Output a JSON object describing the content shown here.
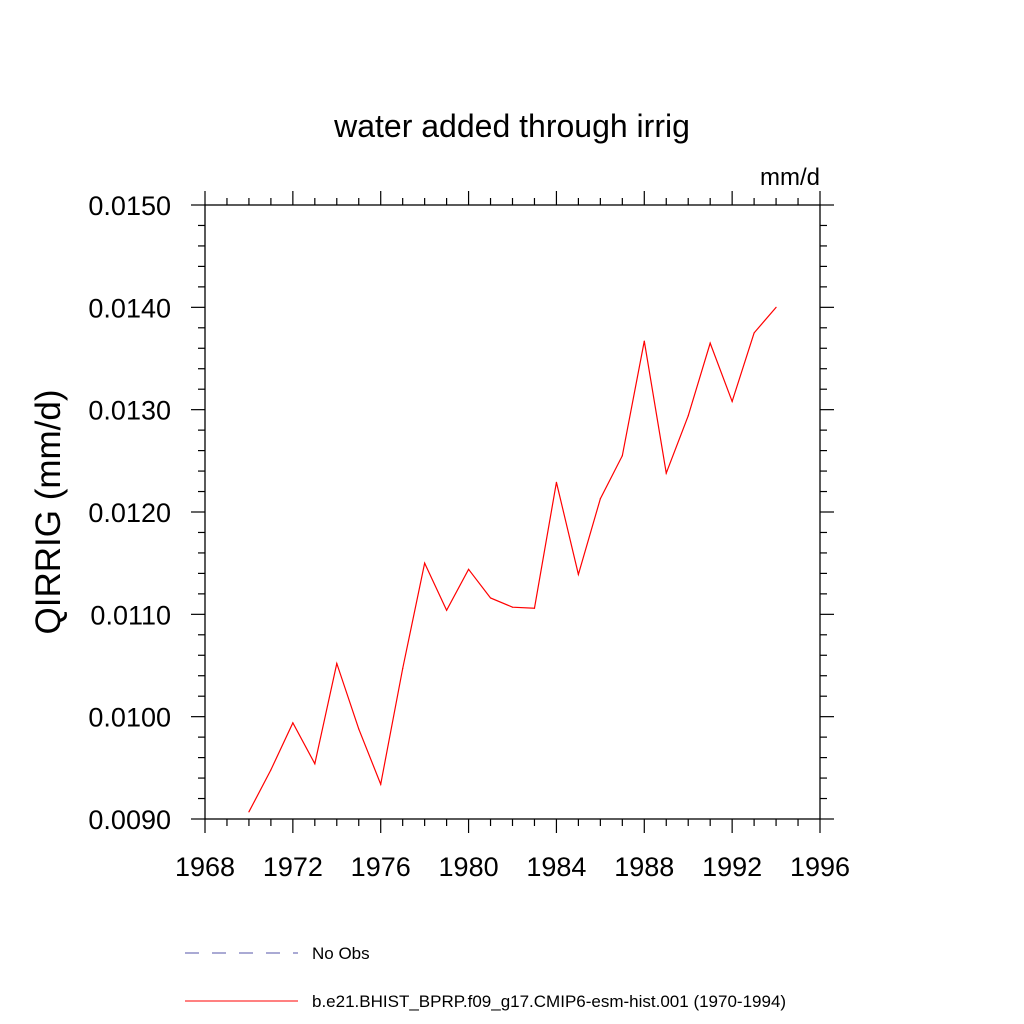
{
  "chart_data": {
    "type": "line",
    "title": "water added through irrig",
    "units_label": "mm/d",
    "ylabel": "QIRRIG  (mm/d)",
    "xlabel": "",
    "xlim": [
      1968,
      1996
    ],
    "ylim": [
      0.009,
      0.015
    ],
    "xticks": [
      1968,
      1972,
      1976,
      1980,
      1984,
      1988,
      1992,
      1996
    ],
    "xtick_labels": [
      "1968",
      "1972",
      "1976",
      "1980",
      "1984",
      "1988",
      "1992",
      "1996"
    ],
    "yticks": [
      0.009,
      0.01,
      0.011,
      0.012,
      0.013,
      0.014,
      0.015
    ],
    "ytick_labels": [
      "0.0090",
      "0.0100",
      "0.0110",
      "0.0120",
      "0.0130",
      "0.0140",
      "0.0150"
    ],
    "grid": false,
    "legend_position": "bottom",
    "series": [
      {
        "name": "No Obs",
        "color": "#5555aa",
        "style": "dashed",
        "x": [],
        "values": []
      },
      {
        "name": "b.e21.BHIST_BPRP.f09_g17.CMIP6-esm-hist.001 (1970-1994)",
        "color": "#ff0000",
        "style": "solid",
        "x": [
          1970,
          1971,
          1972,
          1973,
          1974,
          1975,
          1976,
          1977,
          1978,
          1979,
          1980,
          1981,
          1982,
          1983,
          1984,
          1985,
          1986,
          1987,
          1988,
          1989,
          1990,
          1991,
          1992,
          1993,
          1994
        ],
        "values": [
          0.00907,
          0.00948,
          0.00994,
          0.00954,
          0.01052,
          0.00988,
          0.00934,
          0.01047,
          0.0115,
          0.01104,
          0.01144,
          0.01116,
          0.01107,
          0.01106,
          0.01229,
          0.01139,
          0.01213,
          0.01255,
          0.01367,
          0.01238,
          0.01294,
          0.01365,
          0.01308,
          0.01375,
          0.014
        ]
      }
    ]
  }
}
